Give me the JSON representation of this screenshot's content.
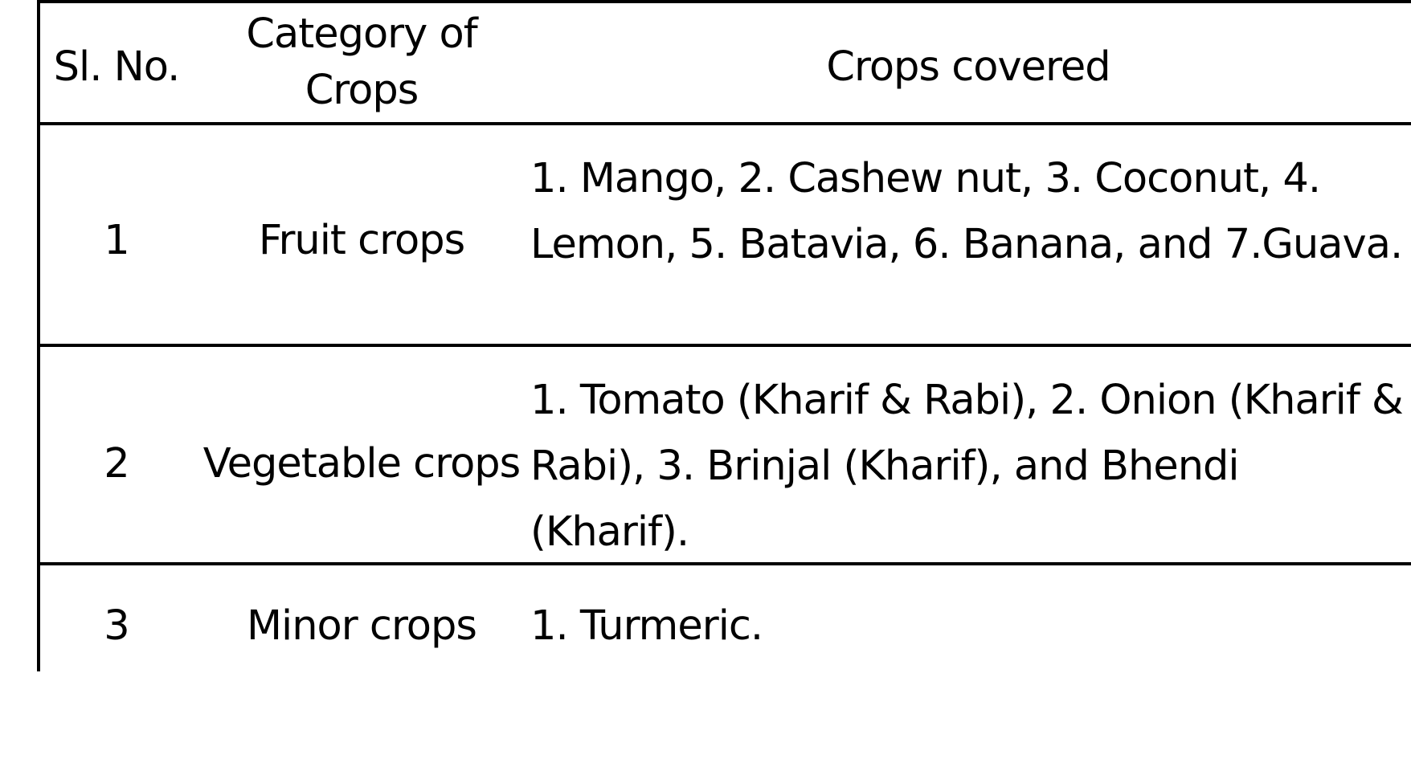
{
  "table": {
    "headers": {
      "sl_no": "Sl. No.",
      "category": "Category of Crops",
      "crops_covered": "Crops covered"
    },
    "rows": [
      {
        "sl_no": "1",
        "category": "Fruit crops",
        "crops": "1. Mango, 2. Cashew nut, 3. Coconut, 4. Lemon,      5. Batavia, 6. Banana, and 7.Guava."
      },
      {
        "sl_no": "2",
        "category": "Vegetable crops",
        "crops": "1. Tomato (Kharif & Rabi), 2. Onion (Kharif & Rabi),   3. Brinjal (Kharif), and Bhendi (Kharif)."
      },
      {
        "sl_no": "3",
        "category": "Minor crops",
        "crops": "1. Turmeric."
      }
    ]
  }
}
